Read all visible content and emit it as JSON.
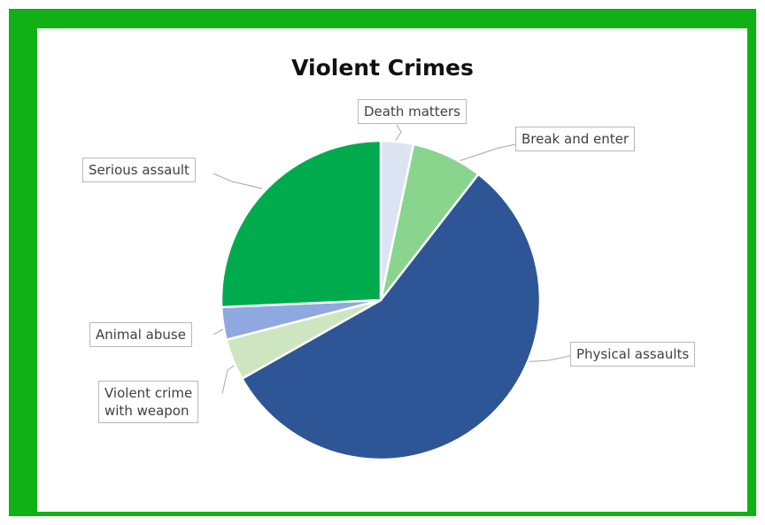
{
  "chart_data": {
    "type": "pie",
    "title": "Violent Crimes",
    "slices": [
      {
        "label": "Death matters",
        "value": 3.3,
        "color": "#dce3f3"
      },
      {
        "label": "Break and enter",
        "value": 7.2,
        "color": "#8ad58e"
      },
      {
        "label": "Physical assaults",
        "value": 56.3,
        "color": "#2e5596"
      },
      {
        "label": "Violent crime with weapon",
        "value": 4.2,
        "color": "#cde5c1"
      },
      {
        "label": "Animal abuse",
        "value": 3.3,
        "color": "#8fa9e0"
      },
      {
        "label": "Serious assault",
        "value": 25.7,
        "color": "#00ab4e"
      }
    ],
    "legend": "none"
  },
  "callouts": {
    "death_matters": "Death matters",
    "break_and_enter": "Break and enter",
    "physical_assaults": "Physical assaults",
    "violent_crime_line1": "Violent crime",
    "violent_crime_line2": "with weapon",
    "animal_abuse": "Animal abuse",
    "serious_assault": "Serious assault"
  },
  "colors": {
    "frame": "#12b017",
    "background": "#ffffff"
  }
}
